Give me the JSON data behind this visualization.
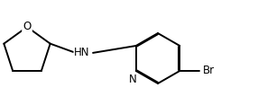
{
  "background_color": "#ffffff",
  "line_color": "#000000",
  "line_width": 1.4,
  "text_color": "#000000",
  "label_O": "O",
  "label_HN": "HN",
  "label_N": "N",
  "label_Br": "Br",
  "font_size": 8.5
}
